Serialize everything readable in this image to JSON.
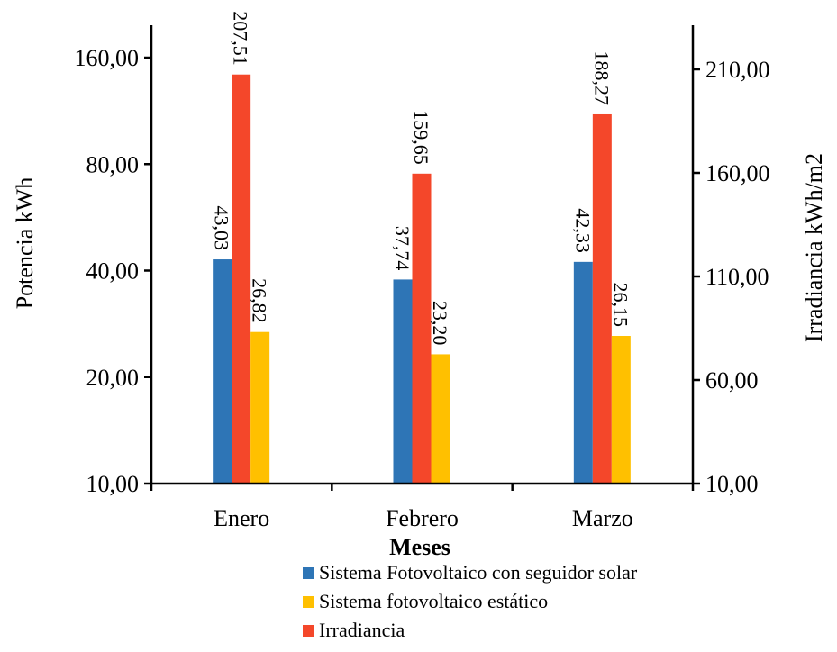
{
  "chart_data": {
    "type": "bar",
    "categories": [
      "Enero",
      "Febrero",
      "Marzo"
    ],
    "xlabel": "Meses",
    "ylabel": "Potencia kWh",
    "y2label": "Irradiancia kWh/m2",
    "y_scale": "log",
    "ylim": [
      10,
      200
    ],
    "yticks": [
      10,
      20,
      40,
      80,
      160
    ],
    "ytick_labels": [
      "10,00",
      "20,00",
      "40,00",
      "80,00",
      "160,00"
    ],
    "y2lim": [
      10,
      230
    ],
    "y2ticks": [
      10,
      60,
      110,
      160,
      210
    ],
    "y2tick_labels": [
      "10,00",
      "60,00",
      "110,00",
      "160,00",
      "210,00"
    ],
    "series": [
      {
        "name": "Sistema Fotovoltaico con seguidor solar",
        "axis": "left",
        "color": "#2E75B6",
        "values": [
          43.03,
          37.74,
          42.33
        ],
        "labels": [
          "43,03",
          "37,74",
          "42,33"
        ]
      },
      {
        "name": "Irradiancia",
        "axis": "right",
        "color": "#F4472A",
        "values": [
          207.51,
          159.65,
          188.27
        ],
        "labels": [
          "207,51",
          "159,65",
          "188,27"
        ]
      },
      {
        "name": "Sistema fotovoltaico estático",
        "axis": "left",
        "color": "#FFC000",
        "values": [
          26.82,
          23.2,
          26.15
        ],
        "labels": [
          "26,82",
          "23,20",
          "26,15"
        ]
      }
    ],
    "legend": {
      "placement": "bottom",
      "items": [
        {
          "label": "Sistema Fotovoltaico con seguidor solar",
          "color": "#2E75B6"
        },
        {
          "label": "Sistema fotovoltaico estático",
          "color": "#FFC000"
        },
        {
          "label": "Irradiancia",
          "color": "#F4472A"
        }
      ]
    }
  }
}
